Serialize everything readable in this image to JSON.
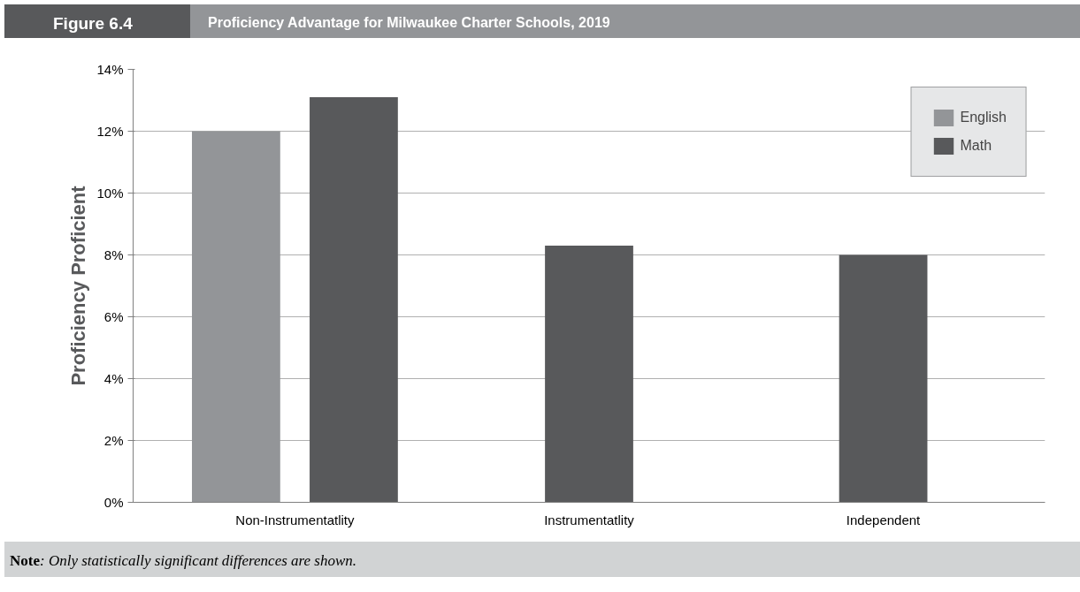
{
  "chart_data": {
    "type": "bar",
    "title": "Proficiency Advantage for Milwaukee Charter Schools, 2019",
    "ylabel": "Proficiency Proficient",
    "annotations": [
      "Figure 6.4",
      "Note: Only statistically significant differences are shown."
    ],
    "categories": [
      "Non-Instrumentatlity",
      "Instrumentatlity",
      "Independent"
    ],
    "series": [
      {
        "name": "English",
        "color": "#939598",
        "values": [
          12.0,
          null,
          null
        ]
      },
      {
        "name": "Math",
        "color": "#58595b",
        "values": [
          13.1,
          8.3,
          8.0
        ]
      }
    ],
    "ylim": [
      0,
      14
    ],
    "yticks": [
      {
        "value": 0,
        "label": "0%"
      },
      {
        "value": 2,
        "label": "2%"
      },
      {
        "value": 4,
        "label": "4%"
      },
      {
        "value": 6,
        "label": "6%"
      },
      {
        "value": 8,
        "label": "8%"
      },
      {
        "value": 10,
        "label": "10%"
      },
      {
        "value": 12,
        "label": "12%"
      },
      {
        "value": 14,
        "label": "14%"
      }
    ],
    "grid": "y",
    "legend": "top right"
  }
}
